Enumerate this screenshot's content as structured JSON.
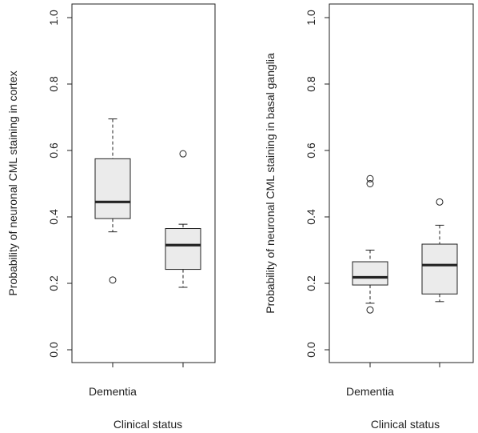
{
  "chart_data": [
    {
      "type": "box",
      "title": "",
      "xlabel": "Clinical status",
      "ylabel": "Probability of neuronal CML staining in cortex",
      "ylim": [
        0,
        1
      ],
      "yticks": [
        "0.0",
        "0.2",
        "0.4",
        "0.6",
        "0.8",
        "1.0"
      ],
      "categories": [
        "Dementia",
        ""
      ],
      "boxes": [
        {
          "whisker_low": 0.355,
          "q1": 0.395,
          "median": 0.445,
          "q3": 0.575,
          "whisker_high": 0.695,
          "outliers": [
            0.21
          ]
        },
        {
          "whisker_low": 0.188,
          "q1": 0.242,
          "median": 0.315,
          "q3": 0.365,
          "whisker_high": 0.378,
          "outliers": [
            0.59
          ]
        }
      ]
    },
    {
      "type": "box",
      "title": "",
      "xlabel": "Clinical status",
      "ylabel": "Probability of neuronal CML staining in basal ganglia",
      "ylim": [
        0,
        1
      ],
      "yticks": [
        "0.0",
        "0.2",
        "0.4",
        "0.6",
        "0.8",
        "1.0"
      ],
      "categories": [
        "Dementia",
        ""
      ],
      "boxes": [
        {
          "whisker_low": 0.14,
          "q1": 0.195,
          "median": 0.218,
          "q3": 0.265,
          "whisker_high": 0.3,
          "outliers": [
            0.12,
            0.5,
            0.515
          ]
        },
        {
          "whisker_low": 0.145,
          "q1": 0.168,
          "median": 0.255,
          "q3": 0.318,
          "whisker_high": 0.375,
          "outliers": [
            0.445
          ]
        }
      ]
    }
  ],
  "style": {
    "box_fill": "#ebebeb",
    "line_color": "#222222"
  }
}
